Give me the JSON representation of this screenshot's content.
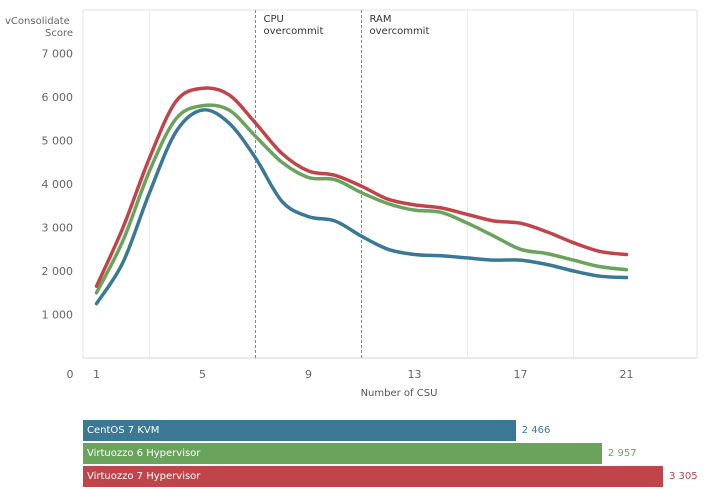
{
  "chart_data": [
    {
      "type": "line",
      "ylabel": "vConsolidate Score",
      "xlabel": "Number of CSU",
      "x_ticks": [
        0,
        1,
        5,
        9,
        13,
        17,
        21
      ],
      "y_ticks": [
        1000,
        2000,
        3000,
        4000,
        5000,
        6000,
        7000
      ],
      "y_tick_labels": [
        "1 000",
        "2 000",
        "3 000",
        "4 000",
        "5 000",
        "6 000",
        "7 000"
      ],
      "xlim": [
        0,
        22
      ],
      "ylim": [
        0,
        8000
      ],
      "grid": "vertical",
      "legend": "none",
      "annotations": [
        {
          "x": 7,
          "label": "CPU\novercommit"
        },
        {
          "x": 11,
          "label": "RAM\novercommit"
        }
      ],
      "x": [
        1,
        2,
        3,
        4,
        5,
        6,
        7,
        8,
        9,
        10,
        11,
        12,
        13,
        14,
        15,
        16,
        17,
        18,
        19,
        20,
        21
      ],
      "series": [
        {
          "name": "CentOS 7 KVM",
          "color": "#3b7896",
          "values": [
            1250,
            2200,
            3800,
            5200,
            5700,
            5400,
            4600,
            3600,
            3250,
            3150,
            2800,
            2500,
            2380,
            2350,
            2300,
            2250,
            2250,
            2150,
            2000,
            1880,
            1850
          ]
        },
        {
          "name": "Virtuozzo 6 Hypervisor",
          "color": "#6aa35c",
          "values": [
            1500,
            2700,
            4300,
            5500,
            5800,
            5700,
            5100,
            4500,
            4150,
            4100,
            3800,
            3550,
            3400,
            3350,
            3100,
            2800,
            2500,
            2400,
            2250,
            2100,
            2030
          ]
        },
        {
          "name": "Virtuozzo 7 Hypervisor",
          "color": "#c0454a",
          "values": [
            1650,
            3000,
            4600,
            5900,
            6200,
            6050,
            5400,
            4700,
            4300,
            4200,
            3950,
            3650,
            3520,
            3450,
            3300,
            3150,
            3100,
            2900,
            2650,
            2450,
            2380
          ]
        }
      ]
    },
    {
      "type": "bar",
      "orientation": "horizontal",
      "categories": [
        "CentOS 7 KVM",
        "Virtuozzo 6 Hypervisor",
        "Virtuozzo 7 Hypervisor"
      ],
      "values": [
        2466,
        2957,
        3305
      ],
      "value_labels": [
        "2 466",
        "2 957",
        "3 305"
      ],
      "colors": [
        "#3b7896",
        "#6aa35c",
        "#c0454a"
      ],
      "xlim": [
        0,
        3305
      ]
    }
  ]
}
